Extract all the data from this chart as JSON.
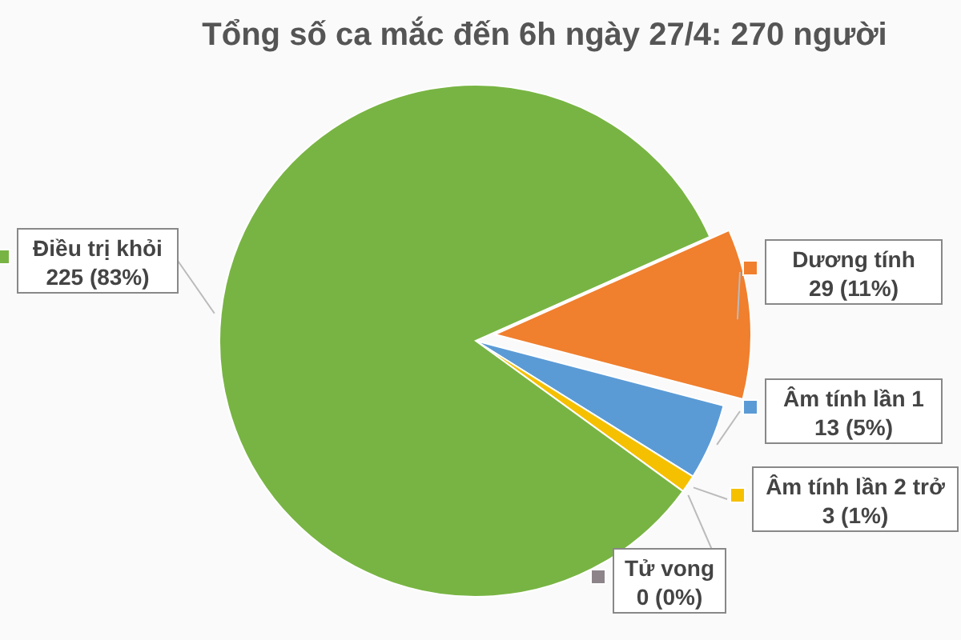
{
  "chart_data": {
    "type": "pie",
    "title": "Tổng số ca mắc đến 6h ngày 27/4: 270 người",
    "categories": [
      "Dương tính",
      "Âm tính lần 1",
      "Âm tính lần 2 trở",
      "Tử vong",
      "Điều trị khỏi"
    ],
    "values": [
      29,
      13,
      3,
      0,
      225
    ],
    "colors": [
      "#f07f2e",
      "#5b9bd5",
      "#f5c000",
      "#8c8489",
      "#78b443"
    ],
    "legend": "right",
    "value_labels": [
      "29 (11%)",
      "13 (5%)",
      "3 (1%)",
      "0 (0%)",
      "225 (83%)"
    ]
  }
}
